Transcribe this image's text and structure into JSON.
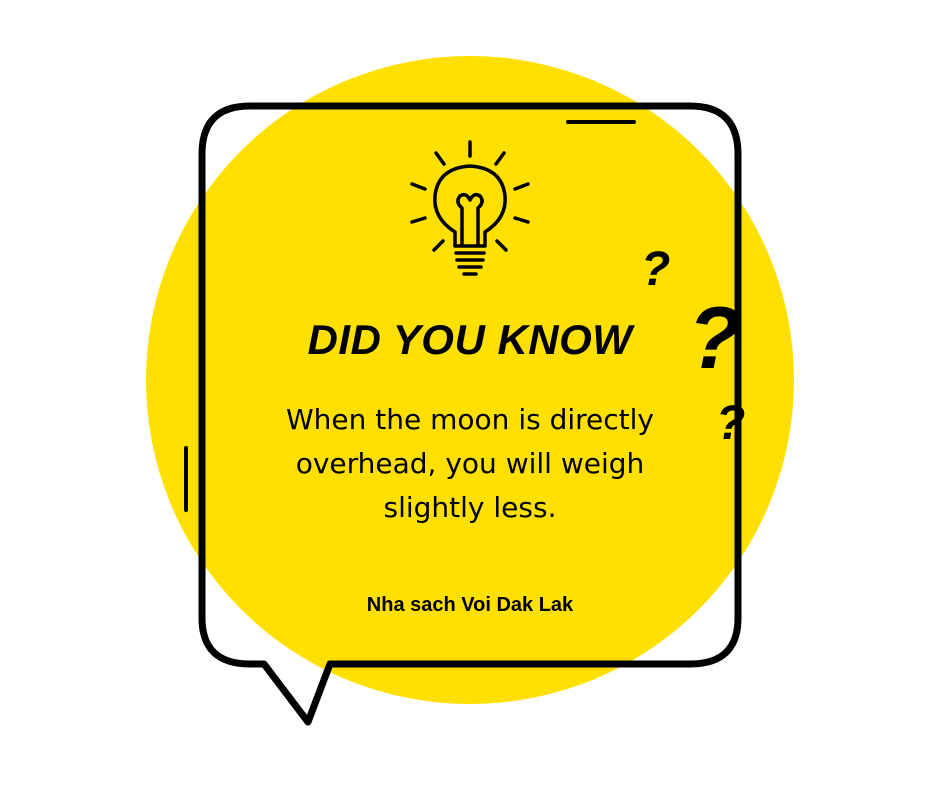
{
  "card": {
    "headline": "DID YOU KNOW",
    "fact": "When the moon is directly overhead, you will weigh slightly less.",
    "credit": "Nha sach Voi Dak Lak"
  },
  "decorations": {
    "question_mark": "?",
    "icon": "lightbulb-icon"
  },
  "colors": {
    "circle": "#FFE000",
    "outline": "#000000",
    "background": "#FFFFFF"
  }
}
